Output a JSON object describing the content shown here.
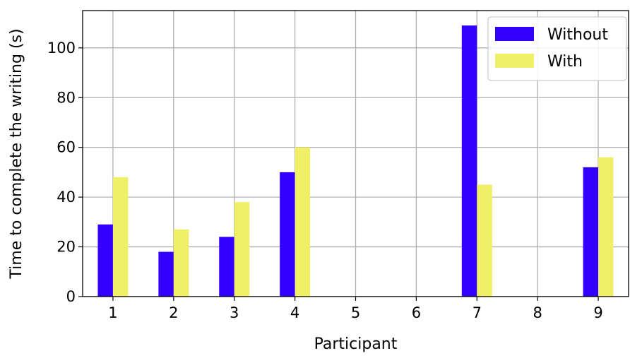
{
  "chart_data": {
    "type": "bar",
    "title": "",
    "xlabel": "Participant",
    "ylabel": "Time to complete the writing (s)",
    "categories": [
      "1",
      "2",
      "3",
      "4",
      "5",
      "6",
      "7",
      "8",
      "9"
    ],
    "series": [
      {
        "name": "Without",
        "color": "#3300ff",
        "values": [
          29,
          18,
          24,
          50,
          null,
          null,
          109,
          null,
          52
        ]
      },
      {
        "name": "With",
        "color": "#f0f066",
        "values": [
          48,
          27,
          38,
          60,
          null,
          null,
          45,
          null,
          56
        ]
      }
    ],
    "ylim": [
      0,
      115
    ],
    "yticks": [
      0,
      20,
      40,
      60,
      80,
      100
    ],
    "grid": true,
    "legend_position": "top-right"
  }
}
